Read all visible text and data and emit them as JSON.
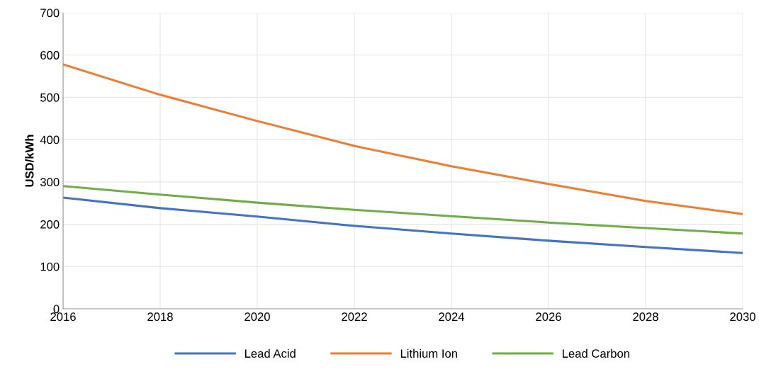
{
  "chart_data": {
    "type": "line",
    "ylabel": "USD/kWh",
    "x": [
      2016,
      2018,
      2020,
      2022,
      2024,
      2026,
      2028,
      2030
    ],
    "series": [
      {
        "name": "Lead Acid",
        "color": "#4472c4",
        "values": [
          263,
          238,
          218,
          196,
          178,
          161,
          146,
          132
        ]
      },
      {
        "name": "Lithium Ion",
        "color": "#ed7d31",
        "values": [
          578,
          506,
          444,
          385,
          337,
          295,
          255,
          224
        ]
      },
      {
        "name": "Lead Carbon",
        "color": "#70ad47",
        "values": [
          290,
          270,
          251,
          234,
          219,
          204,
          191,
          178
        ]
      }
    ],
    "xlim": [
      2016,
      2030
    ],
    "xticks": [
      2016,
      2018,
      2020,
      2022,
      2024,
      2026,
      2028,
      2030
    ],
    "ylim": [
      0,
      700
    ],
    "yticks": [
      0,
      100,
      200,
      300,
      400,
      500,
      600,
      700
    ],
    "grid": true,
    "legend": "bottom",
    "marker": "none",
    "line_style": "solid"
  }
}
